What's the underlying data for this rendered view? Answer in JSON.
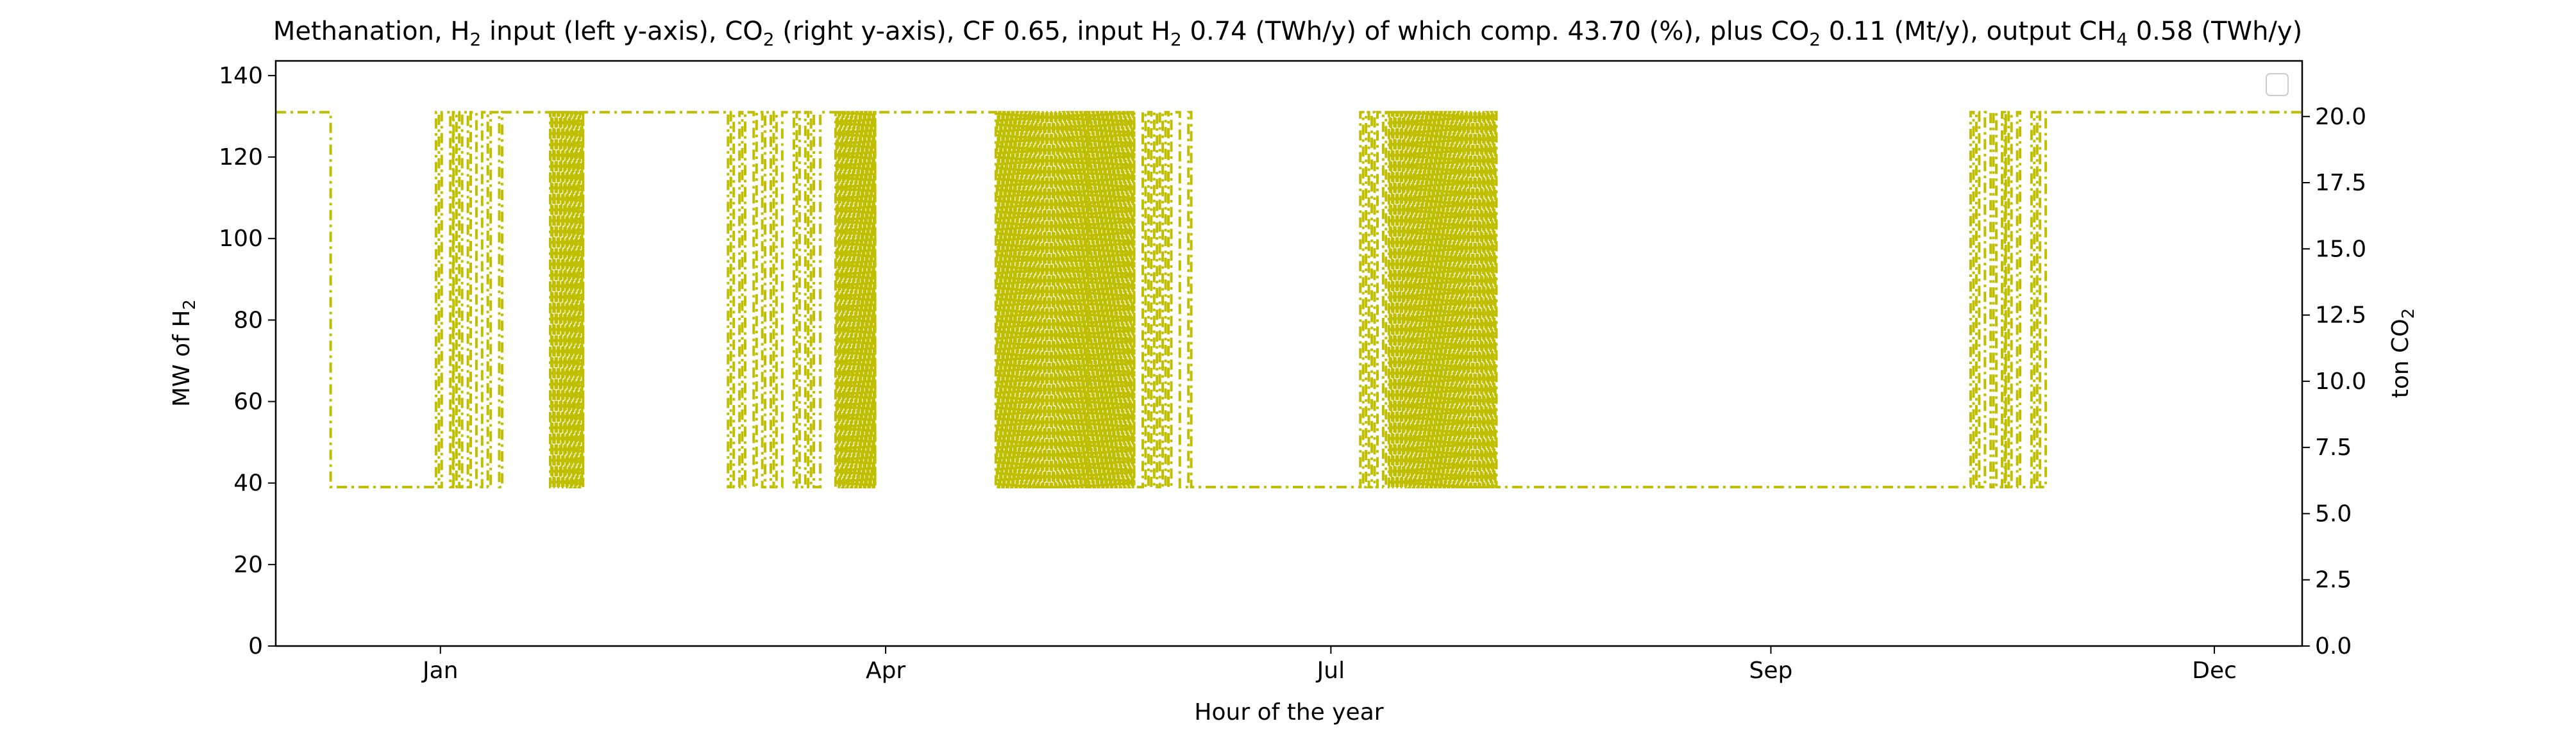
{
  "chart_data": {
    "type": "line",
    "title": {
      "parts": [
        {
          "t": "Methanation, H",
          "sub": false
        },
        {
          "t": "2",
          "sub": true
        },
        {
          "t": " input (left y-axis), CO",
          "sub": false
        },
        {
          "t": "2",
          "sub": true
        },
        {
          "t": " (right y-axis), CF 0.65, input H",
          "sub": false
        },
        {
          "t": "2",
          "sub": true
        },
        {
          "t": " 0.74 (TWh/y) of which comp. 43.70 (%), plus CO",
          "sub": false
        },
        {
          "t": "2",
          "sub": true
        },
        {
          "t": " 0.11 (Mt/y), output CH",
          "sub": false
        },
        {
          "t": "4",
          "sub": true
        },
        {
          "t": " 0.58 (TWh/y)",
          "sub": false
        }
      ]
    },
    "xlabel": "Hour of the year",
    "ylabel_left": {
      "parts": [
        {
          "t": "MW of H",
          "sub": false
        },
        {
          "t": "2",
          "sub": true
        }
      ]
    },
    "ylabel_right": {
      "parts": [
        {
          "t": "ton CO",
          "sub": false
        },
        {
          "t": "2",
          "sub": true
        }
      ]
    },
    "x_axis": {
      "unit": "hour of year",
      "xlim": [
        -1130,
        8100
      ],
      "ticks": [
        {
          "value": -380,
          "label": "Jan"
        },
        {
          "value": 1648,
          "label": "Apr"
        },
        {
          "value": 3676,
          "label": "Jul"
        },
        {
          "value": 5680,
          "label": "Sep"
        },
        {
          "value": 7700,
          "label": "Dec"
        }
      ]
    },
    "y_left": {
      "ylim": [
        0,
        143.6
      ],
      "ticks": [
        0,
        20,
        40,
        60,
        80,
        100,
        120,
        140
      ]
    },
    "y_right": {
      "ylim": [
        0,
        22.1
      ],
      "ticks": [
        "0.0",
        "2.5",
        "5.0",
        "7.5",
        "10.0",
        "12.5",
        "15.0",
        "17.5",
        "20.0"
      ]
    },
    "grid": false,
    "legend": {
      "placement": "top-right",
      "entries": []
    },
    "series": [
      {
        "axis": "left",
        "color": "#bfbf00",
        "line_style": "dashdot",
        "levels": {
          "high": 131,
          "low": 39
        },
        "segments": [
          {
            "start": -1130,
            "end": -880,
            "pattern": "high"
          },
          {
            "start": -880,
            "end": -400,
            "pattern": "low"
          },
          {
            "start": -400,
            "end": -320,
            "pattern": "switching"
          },
          {
            "start": -320,
            "end": -90,
            "pattern": "switching"
          },
          {
            "start": -90,
            "end": 120,
            "pattern": "high"
          },
          {
            "start": 120,
            "end": 270,
            "pattern": "dense"
          },
          {
            "start": 270,
            "end": 930,
            "pattern": "high"
          },
          {
            "start": 930,
            "end": 1190,
            "pattern": "switching"
          },
          {
            "start": 1190,
            "end": 1230,
            "pattern": "high"
          },
          {
            "start": 1230,
            "end": 1350,
            "pattern": "switching"
          },
          {
            "start": 1350,
            "end": 1420,
            "pattern": "high"
          },
          {
            "start": 1420,
            "end": 1600,
            "pattern": "dense"
          },
          {
            "start": 1600,
            "end": 2150,
            "pattern": "high"
          },
          {
            "start": 2150,
            "end": 2570,
            "pattern": "dense"
          },
          {
            "start": 2570,
            "end": 2780,
            "pattern": "dense"
          },
          {
            "start": 2780,
            "end": 3040,
            "pattern": "switching"
          },
          {
            "start": 3040,
            "end": 3810,
            "pattern": "low"
          },
          {
            "start": 3810,
            "end": 3940,
            "pattern": "switching"
          },
          {
            "start": 3940,
            "end": 4430,
            "pattern": "dense"
          },
          {
            "start": 4430,
            "end": 5130,
            "pattern": "low"
          },
          {
            "start": 5130,
            "end": 5530,
            "pattern": "low"
          },
          {
            "start": 5530,
            "end": 6590,
            "pattern": "low"
          },
          {
            "start": 6590,
            "end": 6750,
            "pattern": "switching"
          },
          {
            "start": 6750,
            "end": 6970,
            "pattern": "switching"
          },
          {
            "start": 6970,
            "end": 8100,
            "pattern": "high"
          }
        ]
      }
    ]
  }
}
